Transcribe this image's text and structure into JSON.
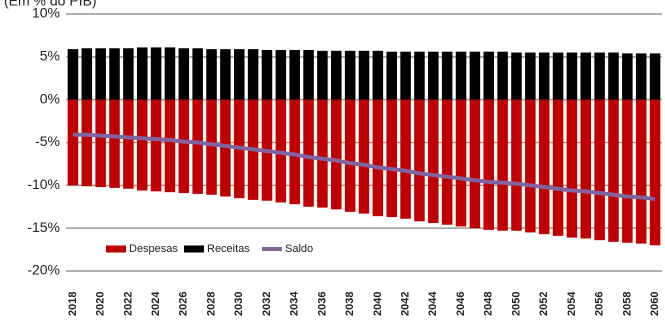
{
  "chart_data": {
    "type": "bar",
    "subtitle": "(Em % do PIB)",
    "categories": [
      "2018",
      null,
      "2020",
      null,
      "2022",
      null,
      "2024",
      null,
      "2026",
      null,
      "2028",
      null,
      "2030",
      null,
      "2032",
      null,
      "2034",
      null,
      "2036",
      null,
      "2038",
      null,
      "2040",
      null,
      "2042",
      null,
      "2044",
      null,
      "2046",
      null,
      "2048",
      null,
      "2050",
      null,
      "2052",
      null,
      "2054",
      null,
      "2056",
      null,
      "2058",
      null,
      "2060"
    ],
    "series": [
      {
        "name": "Despesas",
        "color": "#c00000",
        "kind": "bar",
        "values": [
          -10.0,
          -10.1,
          -10.2,
          -10.3,
          -10.4,
          -10.6,
          -10.7,
          -10.8,
          -10.9,
          -11.0,
          -11.1,
          -11.3,
          -11.5,
          -11.7,
          -11.8,
          -12.0,
          -12.2,
          -12.5,
          -12.6,
          -12.8,
          -13.1,
          -13.3,
          -13.6,
          -13.7,
          -13.9,
          -14.2,
          -14.4,
          -14.6,
          -14.8,
          -15.0,
          -15.2,
          -15.3,
          -15.3,
          -15.5,
          -15.7,
          -15.9,
          -16.1,
          -16.2,
          -16.4,
          -16.6,
          -16.7,
          -16.8,
          -17.0
        ]
      },
      {
        "name": "Receitas",
        "color": "#000000",
        "kind": "bar",
        "values": [
          5.9,
          6.0,
          6.0,
          6.0,
          6.0,
          6.1,
          6.1,
          6.1,
          6.0,
          6.0,
          5.9,
          5.9,
          5.9,
          5.9,
          5.8,
          5.8,
          5.8,
          5.8,
          5.7,
          5.7,
          5.7,
          5.7,
          5.7,
          5.6,
          5.6,
          5.6,
          5.6,
          5.6,
          5.6,
          5.6,
          5.6,
          5.6,
          5.5,
          5.5,
          5.5,
          5.5,
          5.5,
          5.5,
          5.5,
          5.5,
          5.4,
          5.4,
          5.4
        ]
      },
      {
        "name": "Saldo",
        "color": "#8064a2",
        "kind": "line",
        "values": [
          -4.1,
          -4.1,
          -4.2,
          -4.3,
          -4.4,
          -4.5,
          -4.6,
          -4.7,
          -4.9,
          -5.0,
          -5.2,
          -5.4,
          -5.6,
          -5.8,
          -6.0,
          -6.2,
          -6.4,
          -6.7,
          -6.9,
          -7.1,
          -7.4,
          -7.6,
          -7.9,
          -8.1,
          -8.3,
          -8.6,
          -8.8,
          -9.0,
          -9.2,
          -9.4,
          -9.6,
          -9.7,
          -9.8,
          -10.0,
          -10.2,
          -10.4,
          -10.6,
          -10.7,
          -10.9,
          -11.1,
          -11.3,
          -11.4,
          -11.6
        ]
      }
    ],
    "ylim": [
      -20,
      10
    ],
    "yticks": [
      {
        "value": -20,
        "label": "-20%"
      },
      {
        "value": -15,
        "label": "-15%"
      },
      {
        "value": -10,
        "label": "-10%"
      },
      {
        "value": -5,
        "label": "-5%"
      },
      {
        "value": 0,
        "label": "0%"
      },
      {
        "value": 5,
        "label": "5%"
      },
      {
        "value": 10,
        "label": "10%"
      }
    ],
    "grid": true,
    "legend": "bottom-left"
  }
}
